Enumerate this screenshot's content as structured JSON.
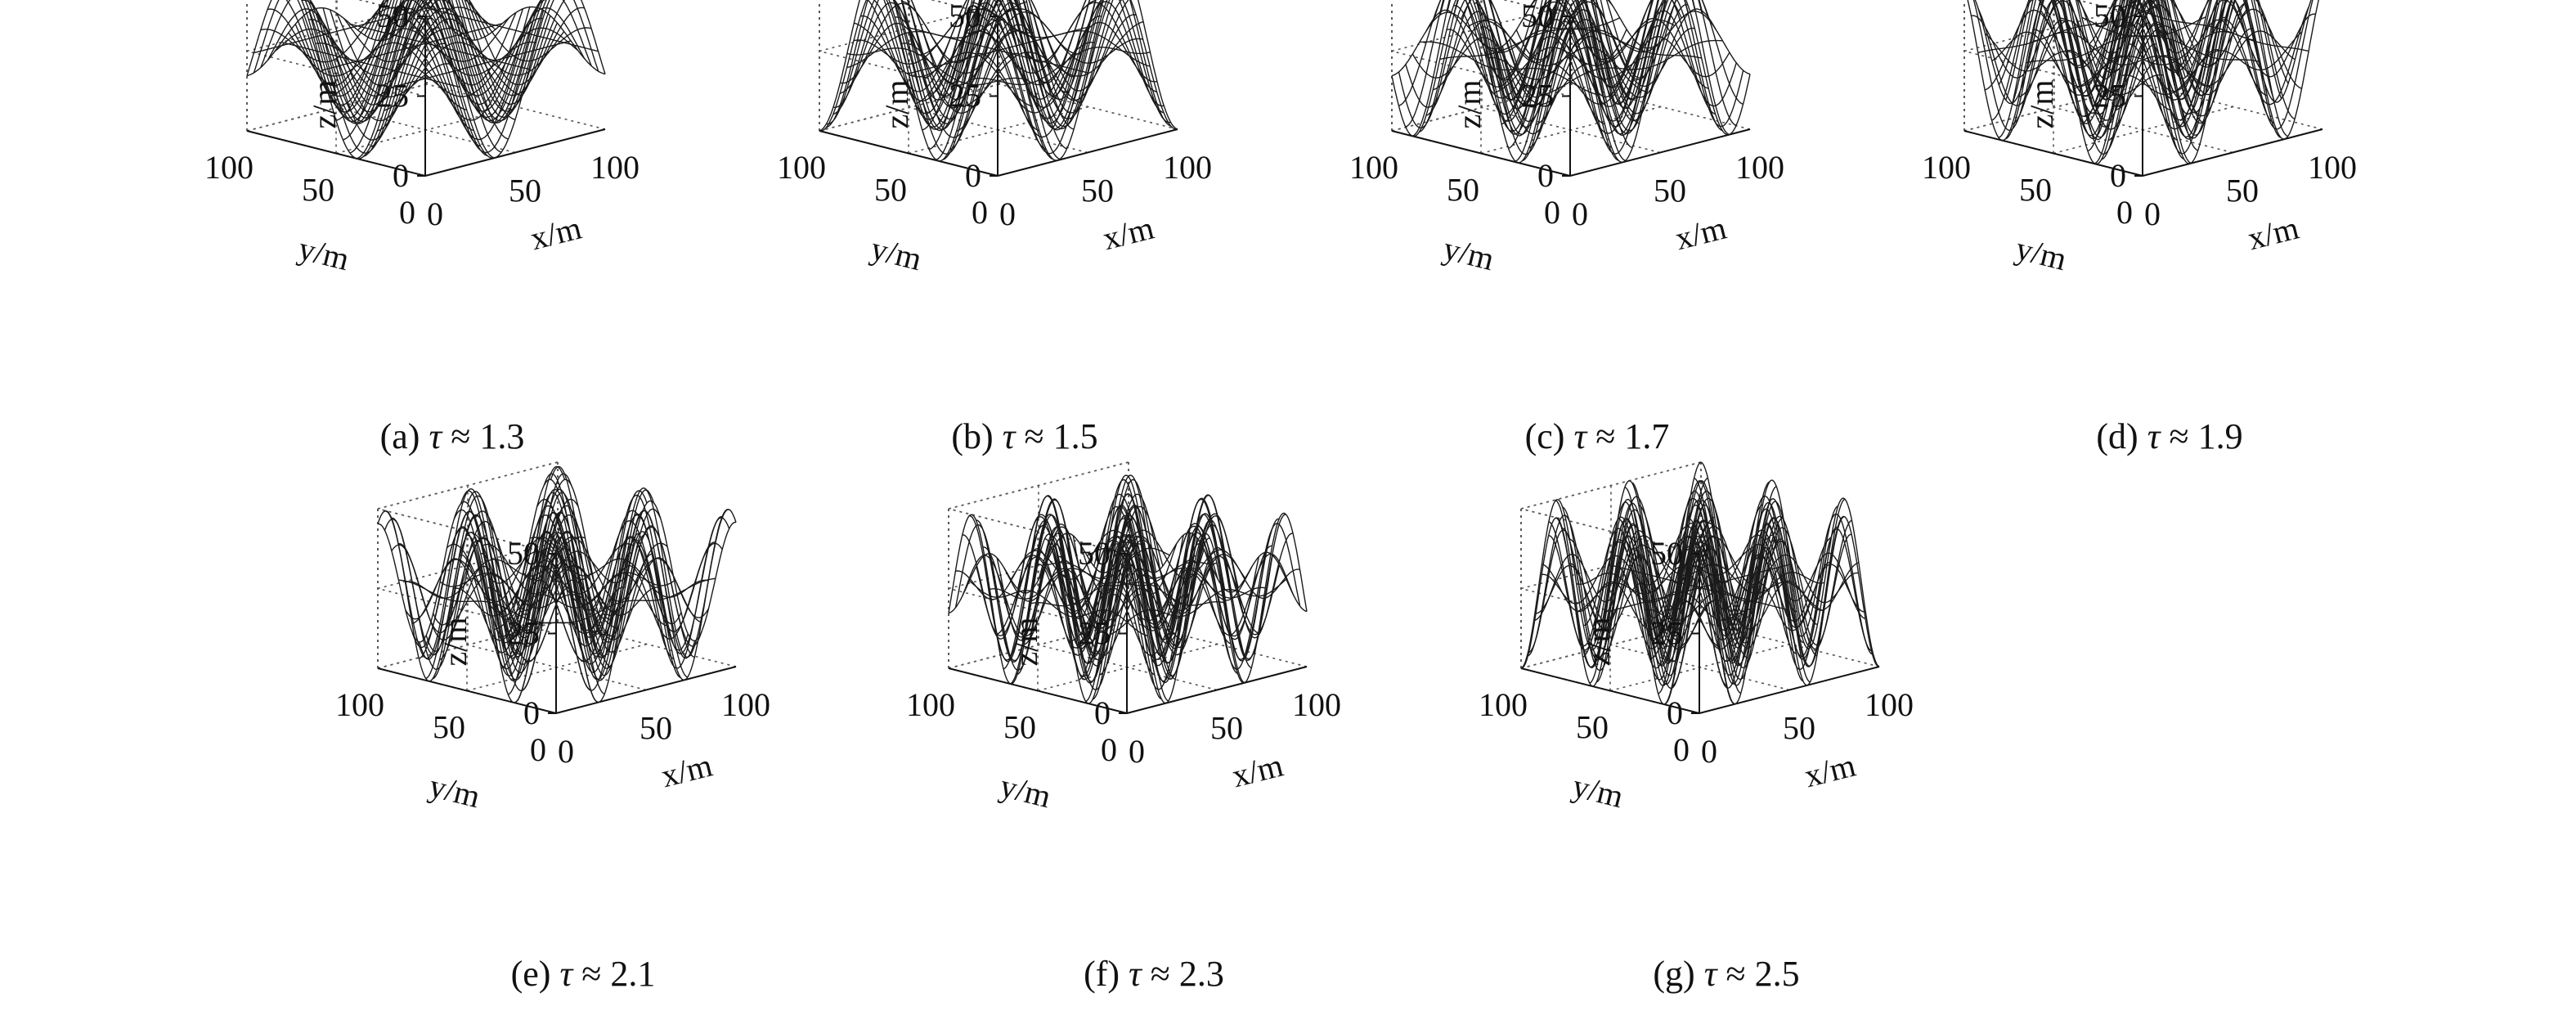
{
  "figure": {
    "panels": [
      {
        "label": "(a)",
        "tau_symbol": "τ",
        "approx": "≈",
        "tau": 1.3
      },
      {
        "label": "(b)",
        "tau_symbol": "τ",
        "approx": "≈",
        "tau": 1.5
      },
      {
        "label": "(c)",
        "tau_symbol": "τ",
        "approx": "≈",
        "tau": 1.7
      },
      {
        "label": "(d)",
        "tau_symbol": "τ",
        "approx": "≈",
        "tau": 1.9
      },
      {
        "label": "(e)",
        "tau_symbol": "τ",
        "approx": "≈",
        "tau": 2.1
      },
      {
        "label": "(f)",
        "tau_symbol": "τ",
        "approx": "≈",
        "tau": 2.3
      },
      {
        "label": "(g)",
        "tau_symbol": "τ",
        "approx": "≈",
        "tau": 2.5
      }
    ]
  },
  "chart_data": [
    {
      "type": "surface",
      "caption": "(a) τ ≈ 1.3",
      "xlabel": "x/m",
      "ylabel": "y/m",
      "zlabel": "z/m",
      "xlim": [
        0,
        100
      ],
      "ylim": [
        0,
        100
      ],
      "zlim": [
        0,
        50
      ],
      "xticks": [
        0,
        50,
        100
      ],
      "yticks": [
        0,
        50,
        100
      ],
      "zticks": [
        0,
        25,
        50
      ],
      "tau": 1.3,
      "z_mean": 25,
      "z_amplitude": 25,
      "grid": true
    },
    {
      "type": "surface",
      "caption": "(b) τ ≈ 1.5",
      "xlabel": "x/m",
      "ylabel": "y/m",
      "zlabel": "z/m",
      "xlim": [
        0,
        100
      ],
      "ylim": [
        0,
        100
      ],
      "zlim": [
        0,
        50
      ],
      "xticks": [
        0,
        50,
        100
      ],
      "yticks": [
        0,
        50,
        100
      ],
      "zticks": [
        0,
        25,
        50
      ],
      "tau": 1.5,
      "z_mean": 25,
      "z_amplitude": 25,
      "grid": true
    },
    {
      "type": "surface",
      "caption": "(c) τ ≈ 1.7",
      "xlabel": "x/m",
      "ylabel": "y/m",
      "zlabel": "z/m",
      "xlim": [
        0,
        100
      ],
      "ylim": [
        0,
        100
      ],
      "zlim": [
        0,
        50
      ],
      "xticks": [
        0,
        50,
        100
      ],
      "yticks": [
        0,
        50,
        100
      ],
      "zticks": [
        0,
        25,
        50
      ],
      "tau": 1.7,
      "z_mean": 25,
      "z_amplitude": 25,
      "grid": true
    },
    {
      "type": "surface",
      "caption": "(d) τ ≈ 1.9",
      "xlabel": "x/m",
      "ylabel": "y/m",
      "zlabel": "z/m",
      "xlim": [
        0,
        100
      ],
      "ylim": [
        0,
        100
      ],
      "zlim": [
        0,
        50
      ],
      "xticks": [
        0,
        50,
        100
      ],
      "yticks": [
        0,
        50,
        100
      ],
      "zticks": [
        0,
        25,
        50
      ],
      "tau": 1.9,
      "z_mean": 25,
      "z_amplitude": 25,
      "grid": true
    },
    {
      "type": "surface",
      "caption": "(e) τ ≈ 2.1",
      "xlabel": "x/m",
      "ylabel": "y/m",
      "zlabel": "z/m",
      "xlim": [
        0,
        100
      ],
      "ylim": [
        0,
        100
      ],
      "zlim": [
        0,
        50
      ],
      "xticks": [
        0,
        50,
        100
      ],
      "yticks": [
        0,
        50,
        100
      ],
      "zticks": [
        0,
        25,
        50
      ],
      "tau": 2.1,
      "z_mean": 25,
      "z_amplitude": 25,
      "grid": true
    },
    {
      "type": "surface",
      "caption": "(f) τ ≈ 2.3",
      "xlabel": "x/m",
      "ylabel": "y/m",
      "zlabel": "z/m",
      "xlim": [
        0,
        100
      ],
      "ylim": [
        0,
        100
      ],
      "zlim": [
        0,
        50
      ],
      "xticks": [
        0,
        50,
        100
      ],
      "yticks": [
        0,
        50,
        100
      ],
      "zticks": [
        0,
        25,
        50
      ],
      "tau": 2.3,
      "z_mean": 25,
      "z_amplitude": 25,
      "grid": true
    },
    {
      "type": "surface",
      "caption": "(g) τ ≈ 2.5",
      "xlabel": "x/m",
      "ylabel": "y/m",
      "zlabel": "z/m",
      "xlim": [
        0,
        100
      ],
      "ylim": [
        0,
        100
      ],
      "zlim": [
        0,
        50
      ],
      "xticks": [
        0,
        50,
        100
      ],
      "yticks": [
        0,
        50,
        100
      ],
      "zticks": [
        0,
        25,
        50
      ],
      "tau": 2.5,
      "z_mean": 25,
      "z_amplitude": 25,
      "grid": true
    }
  ]
}
